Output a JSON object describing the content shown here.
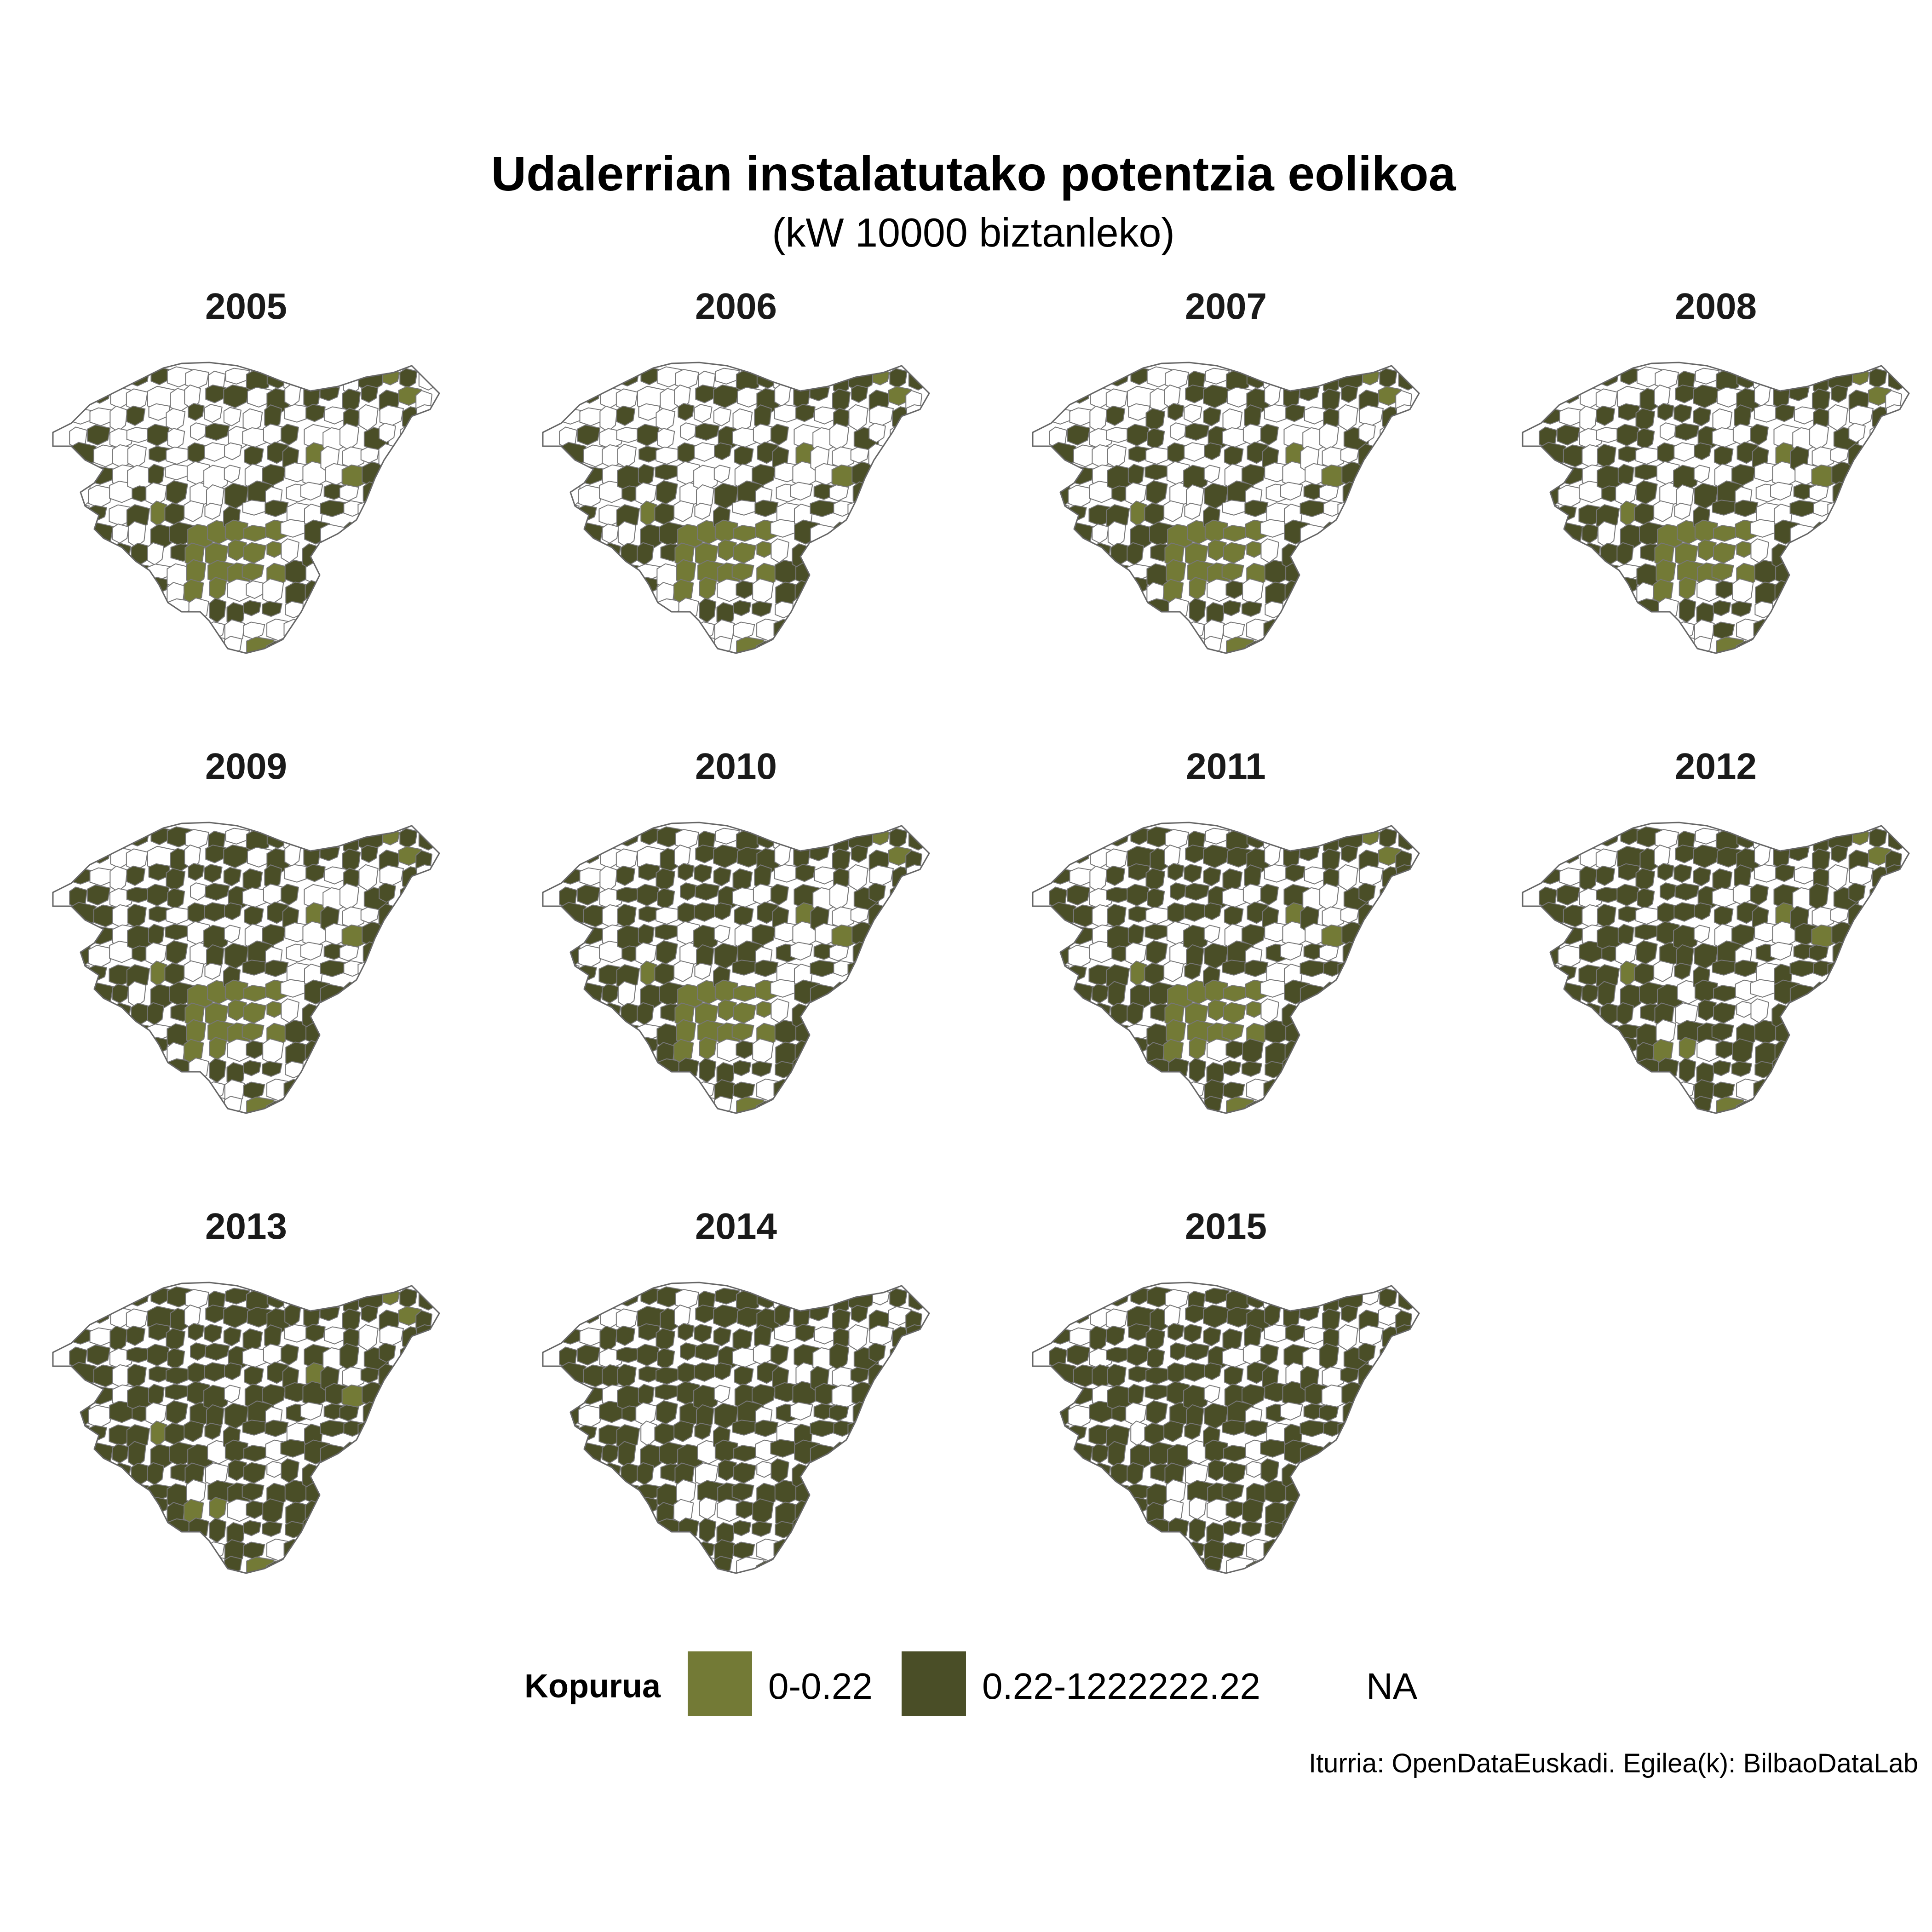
{
  "title": "Udalerrian instalatutako potentzia eolikoa",
  "subtitle": "(kW  10000 biztanleko)",
  "caption": "Iturria: OpenDataEuskadi. Egilea(k): BilbaoDataLab",
  "colors": {
    "light": "#737a36",
    "dark": "#4a4e27",
    "na": "#ffffff",
    "border": "#777777"
  },
  "legend": {
    "title": "Kopurua",
    "items": [
      {
        "label": "0-0.22",
        "color": "#737a36"
      },
      {
        "label": "0.22-1222222.22",
        "color": "#4a4e27"
      },
      {
        "label": "NA",
        "color": "#ffffff"
      }
    ]
  },
  "panels": [
    {
      "year": "2005",
      "level": 0.35
    },
    {
      "year": "2006",
      "level": 0.4
    },
    {
      "year": "2007",
      "level": 0.45
    },
    {
      "year": "2008",
      "level": 0.5
    },
    {
      "year": "2009",
      "level": 0.55
    },
    {
      "year": "2010",
      "level": 0.6
    },
    {
      "year": "2011",
      "level": 0.65
    },
    {
      "year": "2012",
      "level": 0.72
    },
    {
      "year": "2013",
      "level": 0.78
    },
    {
      "year": "2014",
      "level": 0.8
    },
    {
      "year": "2015",
      "level": 0.82
    }
  ]
}
